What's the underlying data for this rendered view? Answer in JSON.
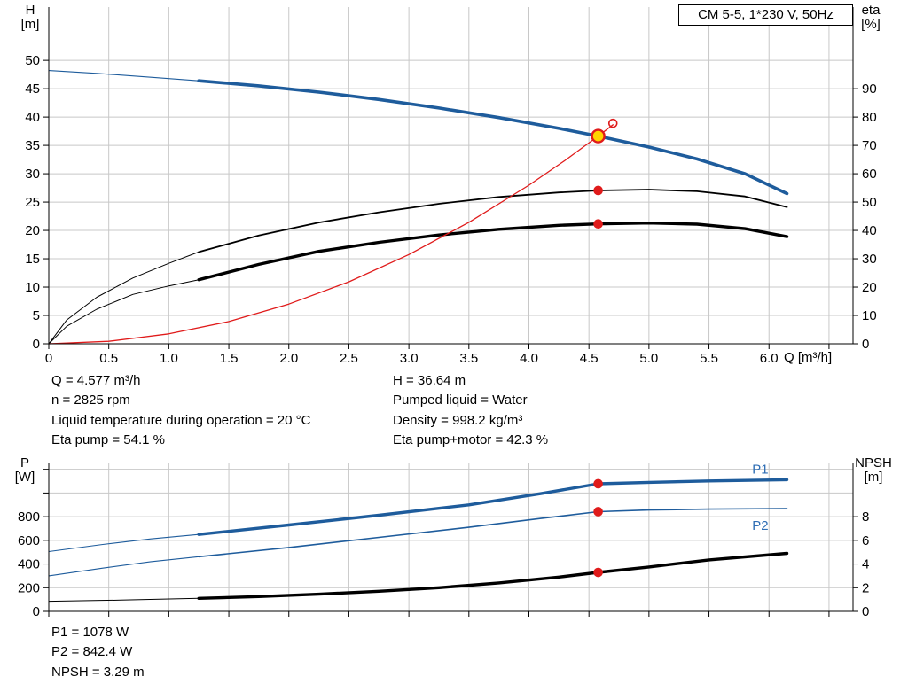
{
  "colors": {
    "blue": "#1e5c9c",
    "red": "#e01b1b",
    "yellow": "#ffd400",
    "black": "#000000",
    "grid": "#c8c8c8",
    "series_label": "#2e6db4"
  },
  "corner_labels": {
    "top_left": [
      "H",
      "[m]"
    ],
    "top_right": [
      "eta",
      "[%]"
    ],
    "x_axis": "Q [m³/h]",
    "bottom_left": [
      "P",
      "[W]"
    ],
    "bottom_right": [
      "NPSH",
      "[m]"
    ]
  },
  "info": {
    "left": [
      "Q = 4.577 m³/h",
      "n = 2825 rpm",
      "Liquid temperature during operation = 20 °C",
      "Eta pump = 54.1 %"
    ],
    "right": [
      "H = 36.64 m",
      "Pumped liquid = Water",
      "Density = 998.2 kg/m³",
      "Eta pump+motor = 42.3 %"
    ]
  },
  "footer": [
    "P1 = 1078 W",
    "P2 = 842.4 W",
    "NPSH = 3.29 m"
  ],
  "chart_data": [
    {
      "type": "line",
      "title": "CM 5-5, 1*230 V, 50Hz",
      "x_axis": {
        "label": "Q [m³/h]",
        "min": 0,
        "max": 6.7,
        "ticks": [
          0,
          0.5,
          1,
          1.5,
          2,
          2.5,
          3,
          3.5,
          4,
          4.5,
          5,
          5.5,
          6,
          6.5
        ],
        "tick_labels": [
          "0",
          "0.5",
          "1.0",
          "1.5",
          "2.0",
          "2.5",
          "3.0",
          "3.5",
          "4.0",
          "4.5",
          "5.0",
          "5.5",
          "6.0",
          ""
        ]
      },
      "y_left": {
        "label": "H [m]",
        "min": 0,
        "max": 59.4,
        "ticks": [
          0,
          5,
          10,
          15,
          20,
          25,
          30,
          35,
          40,
          45,
          50
        ],
        "tick_labels": [
          "0",
          "5",
          "10",
          "15",
          "20",
          "25",
          "30",
          "35",
          "40",
          "45",
          "50"
        ]
      },
      "y_right": {
        "label": "eta [%]",
        "min": 0,
        "max": 118.8,
        "ticks": [
          0,
          10,
          20,
          30,
          40,
          50,
          60,
          70,
          80,
          90
        ],
        "tick_labels": [
          "0",
          "10",
          "20",
          "30",
          "40",
          "50",
          "60",
          "70",
          "80",
          "90"
        ]
      },
      "series": [
        {
          "name": "pump-curve-lead",
          "axis": "left",
          "color": "blue",
          "width": 1.1,
          "points": [
            [
              0,
              48.2
            ],
            [
              0.4,
              47.7
            ],
            [
              0.8,
              47.1
            ],
            [
              1.25,
              46.4
            ]
          ]
        },
        {
          "name": "pump-curve",
          "axis": "left",
          "color": "blue",
          "width": 3.6,
          "points": [
            [
              1.25,
              46.4
            ],
            [
              1.75,
              45.5
            ],
            [
              2.25,
              44.4
            ],
            [
              2.75,
              43.1
            ],
            [
              3.25,
              41.6
            ],
            [
              3.75,
              39.9
            ],
            [
              4.25,
              38.0
            ],
            [
              4.577,
              36.64
            ],
            [
              5.0,
              34.7
            ],
            [
              5.4,
              32.6
            ],
            [
              5.8,
              30.0
            ],
            [
              6.15,
              26.5
            ]
          ]
        },
        {
          "name": "eta-pump-curve-lead",
          "axis": "left",
          "color": "black",
          "width": 1.0,
          "points": [
            [
              0,
              0
            ],
            [
              0.15,
              4.2
            ],
            [
              0.4,
              8.2
            ],
            [
              0.7,
              11.6
            ],
            [
              1.0,
              14.2
            ],
            [
              1.25,
              16.2
            ]
          ]
        },
        {
          "name": "eta-pump-curve",
          "axis": "left",
          "color": "black",
          "width": 1.8,
          "points": [
            [
              1.25,
              16.2
            ],
            [
              1.75,
              19.1
            ],
            [
              2.25,
              21.4
            ],
            [
              2.75,
              23.2
            ],
            [
              3.25,
              24.7
            ],
            [
              3.75,
              25.9
            ],
            [
              4.25,
              26.7
            ],
            [
              4.577,
              27.05
            ],
            [
              5.0,
              27.2
            ],
            [
              5.4,
              26.9
            ],
            [
              5.8,
              26.0
            ],
            [
              6.15,
              24.1
            ]
          ]
        },
        {
          "name": "eta-pump-motor-curve-lead",
          "axis": "left",
          "color": "black",
          "width": 1.0,
          "points": [
            [
              0,
              0
            ],
            [
              0.15,
              3.1
            ],
            [
              0.4,
              6.1
            ],
            [
              0.7,
              8.7
            ],
            [
              1.0,
              10.2
            ],
            [
              1.25,
              11.3
            ]
          ]
        },
        {
          "name": "eta-pump-motor-curve",
          "axis": "left",
          "color": "black",
          "width": 3.4,
          "points": [
            [
              1.25,
              11.3
            ],
            [
              1.75,
              14.0
            ],
            [
              2.25,
              16.3
            ],
            [
              2.75,
              17.9
            ],
            [
              3.25,
              19.2
            ],
            [
              3.75,
              20.2
            ],
            [
              4.25,
              20.9
            ],
            [
              4.577,
              21.15
            ],
            [
              5.0,
              21.3
            ],
            [
              5.4,
              21.1
            ],
            [
              5.8,
              20.3
            ],
            [
              6.15,
              18.9
            ]
          ]
        },
        {
          "name": "system-curve",
          "axis": "left",
          "color": "red",
          "width": 1.3,
          "points": [
            [
              0,
              0
            ],
            [
              0.5,
              0.44
            ],
            [
              1.0,
              1.75
            ],
            [
              1.5,
              3.93
            ],
            [
              2.0,
              7.0
            ],
            [
              2.5,
              10.93
            ],
            [
              3.0,
              15.74
            ],
            [
              3.5,
              21.43
            ],
            [
              4.0,
              27.98
            ],
            [
              4.3,
              32.34
            ],
            [
              4.577,
              36.64
            ],
            [
              4.7,
              38.64
            ]
          ]
        }
      ],
      "markers": [
        {
          "name": "eta-pump-point",
          "type": "dot",
          "axis": "left",
          "x": 4.577,
          "y": 27.05
        },
        {
          "name": "eta-pump-motor-point",
          "type": "dot",
          "axis": "left",
          "x": 4.577,
          "y": 21.15
        },
        {
          "name": "requested-point",
          "type": "open",
          "axis": "left",
          "x": 4.7,
          "y": 38.9
        },
        {
          "name": "duty-point",
          "type": "duty",
          "axis": "left",
          "x": 4.577,
          "y": 36.64
        }
      ]
    },
    {
      "type": "line",
      "title": "",
      "x_axis": {
        "label": "",
        "min": 0,
        "max": 6.7,
        "ticks": [
          0,
          0.5,
          1,
          1.5,
          2,
          2.5,
          3,
          3.5,
          4,
          4.5,
          5,
          5.5,
          6,
          6.5
        ],
        "tick_labels": [
          "",
          "",
          "",
          "",
          "",
          "",
          "",
          "",
          "",
          "",
          "",
          "",
          "",
          ""
        ]
      },
      "y_left": {
        "label": "P [W]",
        "min": 0,
        "max": 1250,
        "ticks": [
          0,
          200,
          400,
          600,
          800,
          1000,
          1200
        ],
        "tick_labels": [
          "0",
          "200",
          "400",
          "600",
          "800",
          "",
          ""
        ]
      },
      "y_right": {
        "label": "NPSH [m]",
        "min": 0,
        "max": 12.5,
        "ticks": [
          0,
          2,
          4,
          6,
          8
        ],
        "tick_labels": [
          "0",
          "2",
          "4",
          "6",
          "8"
        ]
      },
      "series": [
        {
          "name": "p1-curve-lead",
          "axis": "left",
          "color": "blue",
          "width": 1.1,
          "points": [
            [
              0,
              505
            ],
            [
              0.45,
              565
            ],
            [
              0.85,
              612
            ],
            [
              1.25,
              650
            ]
          ]
        },
        {
          "name": "p1-curve",
          "axis": "left",
          "color": "blue",
          "width": 3.4,
          "label": "P1",
          "label_x": 5.86,
          "label_y": 1165,
          "points": [
            [
              1.25,
              650
            ],
            [
              2.0,
              730
            ],
            [
              2.75,
              812
            ],
            [
              3.5,
              900
            ],
            [
              4.1,
              995
            ],
            [
              4.577,
              1078
            ],
            [
              5.0,
              1090
            ],
            [
              5.5,
              1102
            ],
            [
              6.15,
              1112
            ]
          ]
        },
        {
          "name": "p2-curve-lead",
          "axis": "left",
          "color": "blue",
          "width": 1.1,
          "points": [
            [
              0,
              300
            ],
            [
              0.45,
              365
            ],
            [
              0.85,
              420
            ],
            [
              1.25,
              462
            ]
          ]
        },
        {
          "name": "p2-curve",
          "axis": "left",
          "color": "blue",
          "width": 1.6,
          "label": "P2",
          "label_x": 5.86,
          "label_y": 690,
          "points": [
            [
              1.25,
              462
            ],
            [
              2.0,
              540
            ],
            [
              2.75,
              625
            ],
            [
              3.5,
              710
            ],
            [
              4.1,
              785
            ],
            [
              4.577,
              842.4
            ],
            [
              5.0,
              856
            ],
            [
              5.5,
              864
            ],
            [
              6.15,
              868
            ]
          ]
        },
        {
          "name": "npsh-curve-lead",
          "axis": "right",
          "color": "black",
          "width": 1.0,
          "points": [
            [
              0,
              0.85
            ],
            [
              0.6,
              0.95
            ],
            [
              1.25,
              1.1
            ]
          ]
        },
        {
          "name": "npsh-curve",
          "axis": "right",
          "color": "black",
          "width": 3.4,
          "points": [
            [
              1.25,
              1.1
            ],
            [
              1.75,
              1.25
            ],
            [
              2.25,
              1.45
            ],
            [
              2.75,
              1.7
            ],
            [
              3.25,
              2.0
            ],
            [
              3.75,
              2.4
            ],
            [
              4.25,
              2.9
            ],
            [
              4.577,
              3.29
            ],
            [
              5.0,
              3.75
            ],
            [
              5.5,
              4.35
            ],
            [
              6.15,
              4.9
            ]
          ]
        }
      ],
      "markers": [
        {
          "name": "p1-point",
          "type": "dot",
          "axis": "left",
          "x": 4.577,
          "y": 1078
        },
        {
          "name": "p2-point",
          "type": "dot",
          "axis": "left",
          "x": 4.577,
          "y": 842.4
        },
        {
          "name": "npsh-point",
          "type": "dot",
          "axis": "right",
          "x": 4.577,
          "y": 3.29
        }
      ]
    }
  ]
}
